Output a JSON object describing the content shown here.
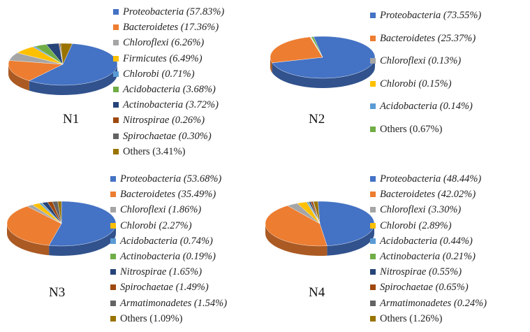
{
  "chart_data": [
    {
      "type": "pie",
      "title": "N1",
      "slices": [
        {
          "name": "Proteobacteria",
          "value": 57.83,
          "label": "Proteobacteria (57.83%)",
          "italic": true,
          "color": "#4472c4"
        },
        {
          "name": "Bacteroidetes",
          "value": 17.36,
          "label": "Bacteroidetes (17.36%)",
          "italic": true,
          "color": "#ed7d31"
        },
        {
          "name": "Chloroflexi",
          "value": 6.26,
          "label": "Chloroflexi (6.26%)",
          "italic": true,
          "color": "#a5a5a5"
        },
        {
          "name": "Firmicutes",
          "value": 6.49,
          "label": "Firmicutes (6.49%)",
          "italic": true,
          "color": "#ffc000"
        },
        {
          "name": "Chlorobi",
          "value": 0.71,
          "label": "Chlorobi (0.71%)",
          "italic": true,
          "color": "#5b9bd5"
        },
        {
          "name": "Acidobacteria",
          "value": 3.68,
          "label": "Acidobacteria (3.68%)",
          "italic": true,
          "color": "#70ad47"
        },
        {
          "name": "Actinobacteria",
          "value": 3.72,
          "label": "Actinobacteria (3.72%)",
          "italic": true,
          "color": "#264478"
        },
        {
          "name": "Nitrospirae",
          "value": 0.26,
          "label": "Nitrospirae (0.26%)",
          "italic": true,
          "color": "#9e480e"
        },
        {
          "name": "Spirochaetae",
          "value": 0.3,
          "label": "Spirochaetae (0.30%)",
          "italic": true,
          "color": "#636363"
        },
        {
          "name": "Others",
          "value": 3.41,
          "label": "Others (3.41%)",
          "italic": false,
          "color": "#997300"
        }
      ]
    },
    {
      "type": "pie",
      "title": "N2",
      "slices": [
        {
          "name": "Proteobacteria",
          "value": 73.55,
          "label": "Proteobacteria (73.55%)",
          "italic": true,
          "color": "#4472c4"
        },
        {
          "name": "Bacteroidetes",
          "value": 25.37,
          "label": "Bacteroidetes (25.37%)",
          "italic": true,
          "color": "#ed7d31"
        },
        {
          "name": "Chloroflexi",
          "value": 0.13,
          "label": "Chloroflexi (0.13%)",
          "italic": true,
          "color": "#a5a5a5"
        },
        {
          "name": "Chlorobi",
          "value": 0.15,
          "label": "Chlorobi (0.15%)",
          "italic": true,
          "color": "#ffc000"
        },
        {
          "name": "Acidobacteria",
          "value": 0.14,
          "label": "Acidobacteria (0.14%)",
          "italic": true,
          "color": "#5b9bd5"
        },
        {
          "name": "Others",
          "value": 0.67,
          "label": "Others (0.67%)",
          "italic": false,
          "color": "#70ad47"
        }
      ]
    },
    {
      "type": "pie",
      "title": "N3",
      "slices": [
        {
          "name": "Proteobacteria",
          "value": 53.68,
          "label": "Proteobacteria (53.68%)",
          "italic": true,
          "color": "#4472c4"
        },
        {
          "name": "Bacteroidetes",
          "value": 35.49,
          "label": "Bacteroidetes (35.49%)",
          "italic": true,
          "color": "#ed7d31"
        },
        {
          "name": "Chloroflexi",
          "value": 1.86,
          "label": "Chloroflexi (1.86%)",
          "italic": true,
          "color": "#a5a5a5"
        },
        {
          "name": "Chlorobi",
          "value": 2.27,
          "label": "Chlorobi (2.27%)",
          "italic": true,
          "color": "#ffc000"
        },
        {
          "name": "Acidobacteria",
          "value": 0.74,
          "label": "Acidobacteria (0.74%)",
          "italic": true,
          "color": "#5b9bd5"
        },
        {
          "name": "Actinobacteria",
          "value": 0.19,
          "label": "Actinobacteria (0.19%)",
          "italic": true,
          "color": "#70ad47"
        },
        {
          "name": "Nitrospirae",
          "value": 1.65,
          "label": "Nitrospirae (1.65%)",
          "italic": true,
          "color": "#264478"
        },
        {
          "name": "Spirochaetae",
          "value": 1.49,
          "label": "Spirochaetae (1.49%)",
          "italic": true,
          "color": "#9e480e"
        },
        {
          "name": "Armatimonadetes",
          "value": 1.54,
          "label": "Armatimonadetes (1.54%)",
          "italic": true,
          "color": "#636363"
        },
        {
          "name": "Others",
          "value": 1.09,
          "label": "Others (1.09%)",
          "italic": false,
          "color": "#997300"
        }
      ]
    },
    {
      "type": "pie",
      "title": "N4",
      "slices": [
        {
          "name": "Proteobacteria",
          "value": 48.44,
          "label": "Proteobacteria (48.44%)",
          "italic": true,
          "color": "#4472c4"
        },
        {
          "name": "Bacteroidetes",
          "value": 42.02,
          "label": "Bacteroidetes (42.02%)",
          "italic": true,
          "color": "#ed7d31"
        },
        {
          "name": "Chloroflexi",
          "value": 3.3,
          "label": "Chloroflexi (3.30%)",
          "italic": true,
          "color": "#a5a5a5"
        },
        {
          "name": "Chlorobi",
          "value": 2.89,
          "label": "Chlorobi (2.89%)",
          "italic": true,
          "color": "#ffc000"
        },
        {
          "name": "Acidobacteria",
          "value": 0.44,
          "label": "Acidobacteria (0.44%)",
          "italic": true,
          "color": "#5b9bd5"
        },
        {
          "name": "Actinobacteria",
          "value": 0.21,
          "label": "Actinobacteria (0.21%)",
          "italic": true,
          "color": "#70ad47"
        },
        {
          "name": "Nitrospirae",
          "value": 0.55,
          "label": "Nitrospirae (0.55%)",
          "italic": true,
          "color": "#264478"
        },
        {
          "name": "Spirochaetae",
          "value": 0.65,
          "label": "Spirochaetae (0.65%)",
          "italic": true,
          "color": "#9e480e"
        },
        {
          "name": "Armatimonadetes",
          "value": 0.24,
          "label": "Armatimonadetes (0.24%)",
          "italic": true,
          "color": "#636363"
        },
        {
          "name": "Others",
          "value": 1.26,
          "label": "Others (1.26%)",
          "italic": false,
          "color": "#997300"
        }
      ]
    }
  ]
}
